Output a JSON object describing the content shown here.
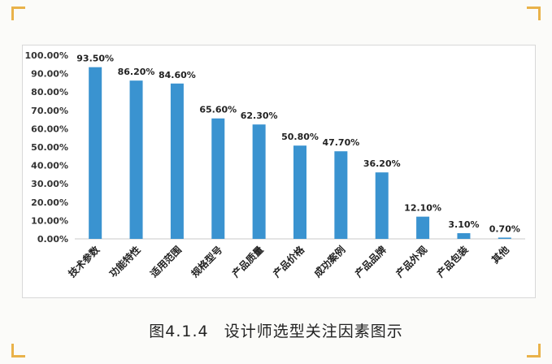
{
  "caption": {
    "number": "图4.1.4",
    "title": "设计师选型关注因素图示"
  },
  "chart_data": {
    "type": "bar",
    "title": "",
    "xlabel": "",
    "ylabel": "",
    "ylim": [
      0,
      100
    ],
    "ytick_step": 10,
    "ytick_labels": [
      "0.00%",
      "10.00%",
      "20.00%",
      "30.00%",
      "40.00%",
      "50.00%",
      "60.00%",
      "70.00%",
      "80.00%",
      "90.00%",
      "100.00%"
    ],
    "grid": false,
    "bar_color": "#3a93d0",
    "categories": [
      "技术参数",
      "功能特性",
      "适用范围",
      "规格型号",
      "产品质量",
      "产品价格",
      "成功案例",
      "产品品牌",
      "产品外观",
      "产品包装",
      "其他"
    ],
    "values": [
      93.5,
      86.2,
      84.6,
      65.6,
      62.3,
      50.8,
      47.7,
      36.2,
      12.1,
      3.1,
      0.7
    ],
    "data_labels": [
      "93.50%",
      "86.20%",
      "84.60%",
      "65.60%",
      "62.30%",
      "50.80%",
      "47.70%",
      "36.20%",
      "12.10%",
      "3.10%",
      "0.70%"
    ]
  }
}
